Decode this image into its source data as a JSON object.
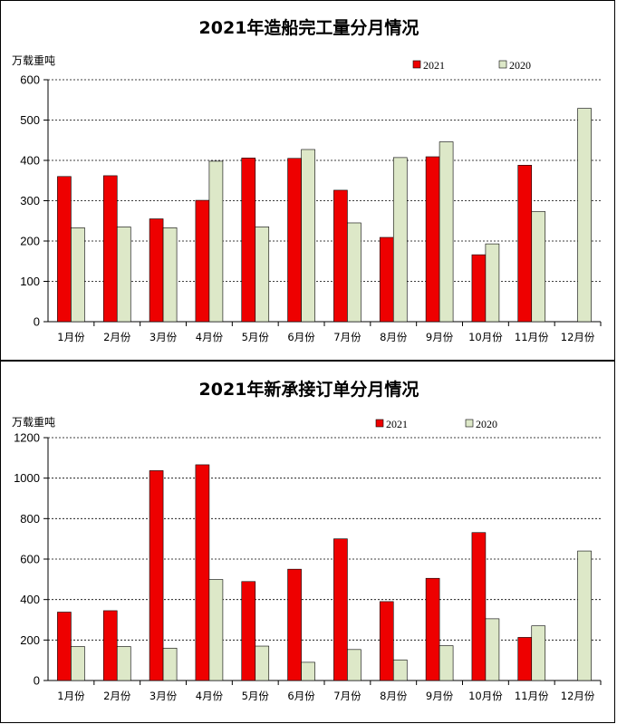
{
  "colors": {
    "series_2021": "#ee0000",
    "series_2020": "#dde8c8"
  },
  "chart_data": [
    {
      "type": "bar",
      "title": "2021年造船完工量分月情况",
      "unit_label": "万载重吨",
      "categories": [
        "1月份",
        "2月份",
        "3月份",
        "4月份",
        "5月份",
        "6月份",
        "7月份",
        "8月份",
        "9月份",
        "10月份",
        "11月份",
        "12月份"
      ],
      "series": [
        {
          "name": "2021",
          "values": [
            360,
            362,
            255,
            301,
            406,
            405,
            326,
            209,
            409,
            166,
            388,
            null
          ]
        },
        {
          "name": "2020",
          "values": [
            233,
            235,
            233,
            398,
            235,
            427,
            245,
            407,
            446,
            193,
            273,
            529
          ]
        }
      ],
      "ylim": [
        0,
        600
      ],
      "yticks": [
        0,
        100,
        200,
        300,
        400,
        500,
        600
      ],
      "grid": true,
      "legend_position": "top-right"
    },
    {
      "type": "bar",
      "title": "2021年新承接订单分月情况",
      "unit_label": "万载重吨",
      "categories": [
        "1月份",
        "2月份",
        "3月份",
        "4月份",
        "5月份",
        "6月份",
        "7月份",
        "8月份",
        "9月份",
        "10月份",
        "11月份",
        "12月份"
      ],
      "series": [
        {
          "name": "2021",
          "values": [
            338,
            345,
            1037,
            1066,
            489,
            550,
            700,
            390,
            505,
            731,
            213,
            null
          ]
        },
        {
          "name": "2020",
          "values": [
            168,
            168,
            160,
            499,
            170,
            90,
            153,
            102,
            172,
            305,
            270,
            640
          ]
        }
      ],
      "ylim": [
        0,
        1200
      ],
      "yticks": [
        0,
        200,
        400,
        600,
        800,
        1000,
        1200
      ],
      "grid": true,
      "legend_position": "top-right"
    }
  ]
}
